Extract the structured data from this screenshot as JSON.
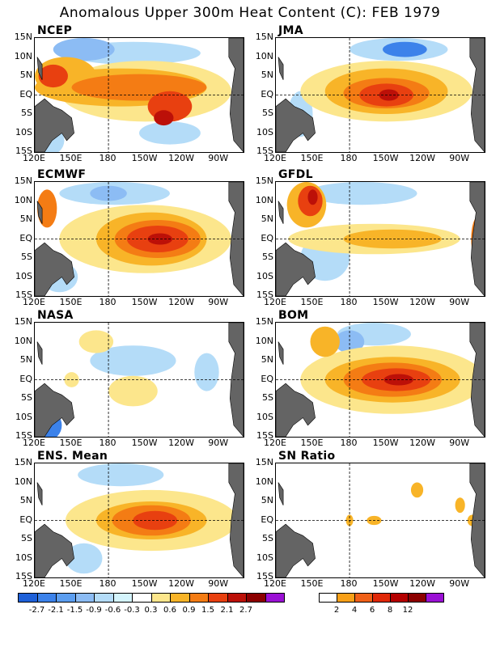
{
  "title": "Anomalous Upper 300m Heat Content (C): FEB 1979",
  "lat_labels": [
    "15N",
    "10N",
    "5N",
    "EQ",
    "5S",
    "10S",
    "15S"
  ],
  "lon_labels": [
    "120E",
    "150E",
    "180",
    "150W",
    "120W",
    "90W"
  ],
  "panels": [
    {
      "name": "NCEP"
    },
    {
      "name": "JMA"
    },
    {
      "name": "ECMWF"
    },
    {
      "name": "GFDL"
    },
    {
      "name": "NASA"
    },
    {
      "name": "BOM"
    },
    {
      "name": "ENS. Mean"
    },
    {
      "name": "SN Ratio"
    }
  ],
  "colorbar_anomaly": {
    "colors": [
      "#1e60d8",
      "#3c82ea",
      "#5c9ef0",
      "#8cbcf4",
      "#b4dcf8",
      "#d4f4fc",
      "#ffffff",
      "#fce68c",
      "#f8b428",
      "#f47c14",
      "#e84010",
      "#bc1008",
      "#8c0000",
      "#9a10d4"
    ],
    "labels": [
      "-2.7",
      "-2.1",
      "-1.5",
      "-0.9",
      "-0.6",
      "-0.3",
      "0.3",
      "0.6",
      "0.9",
      "1.5",
      "2.1",
      "2.7"
    ]
  },
  "colorbar_sn": {
    "colors": [
      "#ffffff",
      "#f8a018",
      "#f06018",
      "#e02808",
      "#b40000",
      "#8c0000",
      "#9a10d4"
    ],
    "labels": [
      "2",
      "4",
      "6",
      "8",
      "12"
    ]
  },
  "colors": {
    "land": "#646464",
    "warm_light": "#fce68c",
    "warm_mid": "#f8b428",
    "warm_strong": "#f47c14",
    "warm_hot": "#e84010",
    "warm_max": "#bc1008",
    "cool_light": "#b4dcf8",
    "cool_mid": "#8cbcf4",
    "cool_strong": "#3c82ea"
  }
}
